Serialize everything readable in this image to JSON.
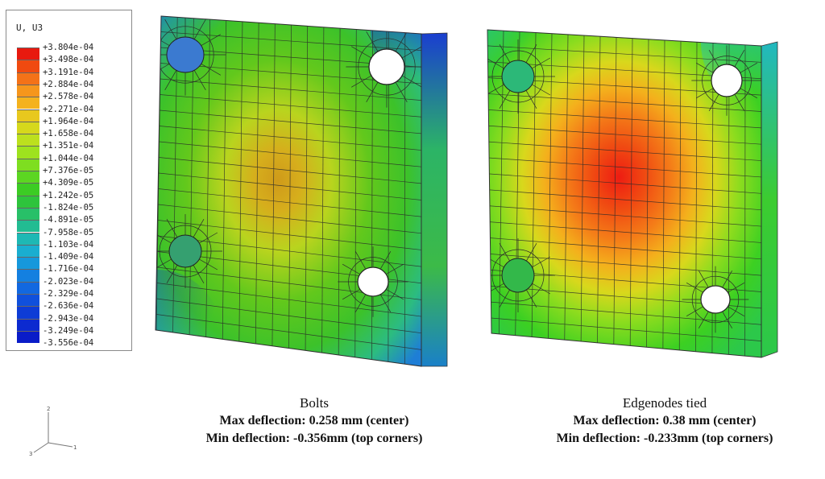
{
  "legend": {
    "title": "U, U3",
    "values": [
      "+3.804e-04",
      "+3.498e-04",
      "+3.191e-04",
      "+2.884e-04",
      "+2.578e-04",
      "+2.271e-04",
      "+1.964e-04",
      "+1.658e-04",
      "+1.351e-04",
      "+1.044e-04",
      "+7.376e-05",
      "+4.309e-05",
      "+1.242e-05",
      "-1.824e-05",
      "-4.891e-05",
      "-7.958e-05",
      "-1.103e-04",
      "-1.409e-04",
      "-1.716e-04",
      "-2.023e-04",
      "-2.329e-04",
      "-2.636e-04",
      "-2.943e-04",
      "-3.249e-04",
      "-3.556e-04"
    ],
    "colors": [
      "#e8190f",
      "#f04a10",
      "#f47218",
      "#f6961c",
      "#f4b21e",
      "#e8c81e",
      "#d6d81c",
      "#bce01e",
      "#9ee21e",
      "#7ede20",
      "#5cd622",
      "#3ccc24",
      "#2ec43c",
      "#28c068",
      "#22bc92",
      "#1eb8b4",
      "#1aaed0",
      "#1698dc",
      "#1480e0",
      "#1268e0",
      "#1050dc",
      "#0e3cd6",
      "#0c2ad0",
      "#0a1cc8"
    ]
  },
  "views": [
    {
      "caption_title": "Bolts",
      "line1": "Max deflection: 0.258 mm (center)",
      "line2": "Min deflection: -0.356mm (top corners)"
    },
    {
      "caption_title": "Edgenodes tied",
      "line1": "Max deflection: 0.38 mm (center)",
      "line2": "Min deflection: -0.233mm (top corners)"
    }
  ],
  "triad": {
    "axis_1": "1",
    "axis_2": "2",
    "axis_3": "3"
  }
}
